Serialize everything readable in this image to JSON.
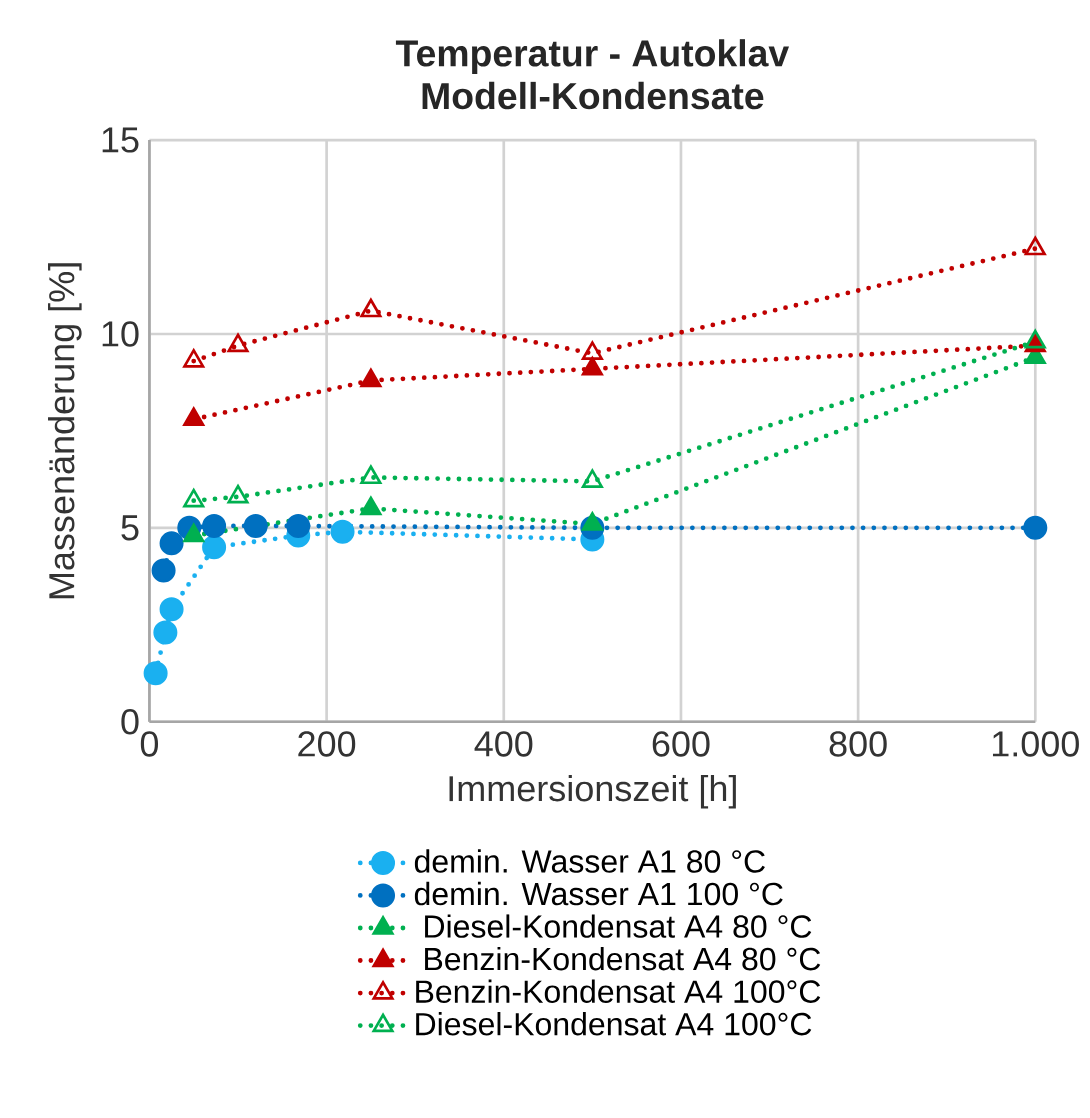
{
  "chart_data": {
    "type": "line",
    "title": "Temperatur - Autoklav",
    "subtitle": "Modell-Kondensate",
    "xlabel": "Immersionszeit [h]",
    "ylabel": "Massenänderung [%]",
    "xlim": [
      0,
      1000
    ],
    "ylim": [
      0,
      15
    ],
    "xticks": [
      0,
      200,
      400,
      600,
      800,
      {
        "value": 1000,
        "label": "1.000"
      }
    ],
    "yticks": [
      0,
      5,
      10,
      15
    ],
    "grid": true,
    "legend": "bottom",
    "line_style": "dotted",
    "series": [
      {
        "name": "demin. Wasser A1 80 °C",
        "color": "#1ab0f0",
        "marker": "circle",
        "x": [
          7,
          18,
          25,
          73,
          168,
          218,
          500
        ],
        "values": [
          1.25,
          2.3,
          2.9,
          4.5,
          4.8,
          4.9,
          4.7
        ]
      },
      {
        "name": "demin. Wasser A1 100 °C",
        "color": "#0070c0",
        "marker": "circle",
        "x": [
          16,
          25,
          45,
          73,
          120,
          168,
          500,
          1000
        ],
        "values": [
          3.9,
          4.6,
          5.0,
          5.05,
          5.05,
          5.05,
          5.0,
          5.0
        ]
      },
      {
        "name": " Diesel-Kondensat A4 80 °C",
        "color": "#00b050",
        "marker": "triangle",
        "x": [
          50,
          250,
          500,
          1000
        ],
        "values": [
          4.8,
          5.5,
          5.1,
          9.4
        ]
      },
      {
        "name": " Benzin-Kondensat A4 80 °C",
        "color": "#c00000",
        "marker": "triangle",
        "x": [
          50,
          250,
          500,
          1000
        ],
        "values": [
          7.8,
          8.8,
          9.1,
          9.7
        ]
      },
      {
        "name": "Benzin-Kondensat A4 100°C",
        "color": "#c00000",
        "marker": "triangle-open",
        "x": [
          50,
          100,
          250,
          500,
          1000
        ],
        "values": [
          9.3,
          9.7,
          10.6,
          9.5,
          12.2
        ]
      },
      {
        "name": "Diesel-Kondensat A4 100°C",
        "color": "#00b050",
        "marker": "triangle-open",
        "x": [
          50,
          100,
          250,
          500,
          1000
        ],
        "values": [
          5.7,
          5.8,
          6.3,
          6.2,
          9.8
        ]
      }
    ]
  }
}
